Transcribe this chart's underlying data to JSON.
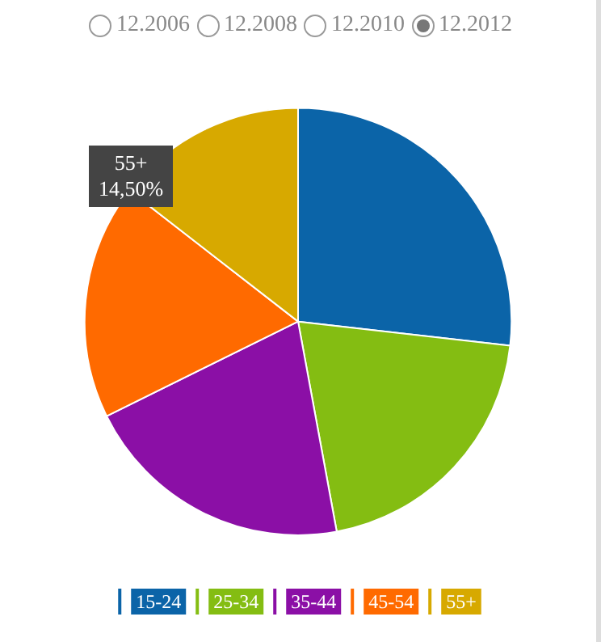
{
  "chart_data": {
    "type": "pie",
    "categories": [
      "15-24",
      "25-34",
      "35-44",
      "45-54",
      "55+"
    ],
    "values": [
      26.8,
      20.3,
      20.6,
      17.8,
      14.5
    ],
    "colors": [
      "#0b64a8",
      "#84bd12",
      "#8b0fa6",
      "#ff6a00",
      "#d7a900"
    ],
    "annotations": [
      "12.2006",
      "12.2008",
      "12.2010",
      "12.2012",
      "55+\n14,50%"
    ],
    "legend": "bottom"
  }
}
